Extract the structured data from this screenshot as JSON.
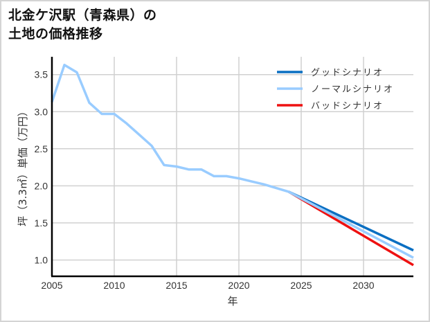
{
  "title": {
    "line1": "北金ケ沢駅（青森県）の",
    "line2": "土地の価格推移"
  },
  "chart_data": {
    "type": "line",
    "title": "北金ケ沢駅（青森県）の土地の価格推移",
    "xlabel": "年",
    "ylabel": "坪（3.3㎡）単価（万円）",
    "xlim": [
      2005,
      2034
    ],
    "ylim": [
      0.78,
      3.74
    ],
    "x_ticks": [
      2005,
      2010,
      2015,
      2020,
      2025,
      2030
    ],
    "y_ticks": [
      1.0,
      1.5,
      2.0,
      2.5,
      3.0,
      3.5
    ],
    "x_tick_labels": [
      "2005",
      "2010",
      "2015",
      "2020",
      "2025",
      "2030"
    ],
    "y_tick_labels": [
      "1.0",
      "1.5",
      "2.0",
      "2.5",
      "3.0",
      "3.5"
    ],
    "grid": true,
    "legend_position": "upper right",
    "series": [
      {
        "name": "グッドシナリオ",
        "color": "#0a6fc2",
        "x": [
          2024,
          2034
        ],
        "values": [
          1.92,
          1.13
        ]
      },
      {
        "name": "ノーマルシナリオ",
        "color": "#99ccff",
        "x": [
          2005,
          2006,
          2007,
          2008,
          2009,
          2010,
          2011,
          2012,
          2013,
          2014,
          2015,
          2016,
          2017,
          2018,
          2019,
          2020,
          2021,
          2022,
          2023,
          2024,
          2034
        ],
        "values": [
          3.13,
          3.63,
          3.53,
          3.12,
          2.97,
          2.97,
          2.84,
          2.69,
          2.54,
          2.28,
          2.26,
          2.22,
          2.22,
          2.13,
          2.13,
          2.1,
          2.06,
          2.02,
          1.97,
          1.92,
          1.03
        ]
      },
      {
        "name": "バッドシナリオ",
        "color": "#ee1111",
        "x": [
          2024,
          2034
        ],
        "values": [
          1.92,
          0.93
        ]
      }
    ]
  },
  "legend": [
    {
      "label": "グッドシナリオ",
      "color": "#0a6fc2"
    },
    {
      "label": "ノーマルシナリオ",
      "color": "#99ccff"
    },
    {
      "label": "バッドシナリオ",
      "color": "#ee1111"
    }
  ]
}
